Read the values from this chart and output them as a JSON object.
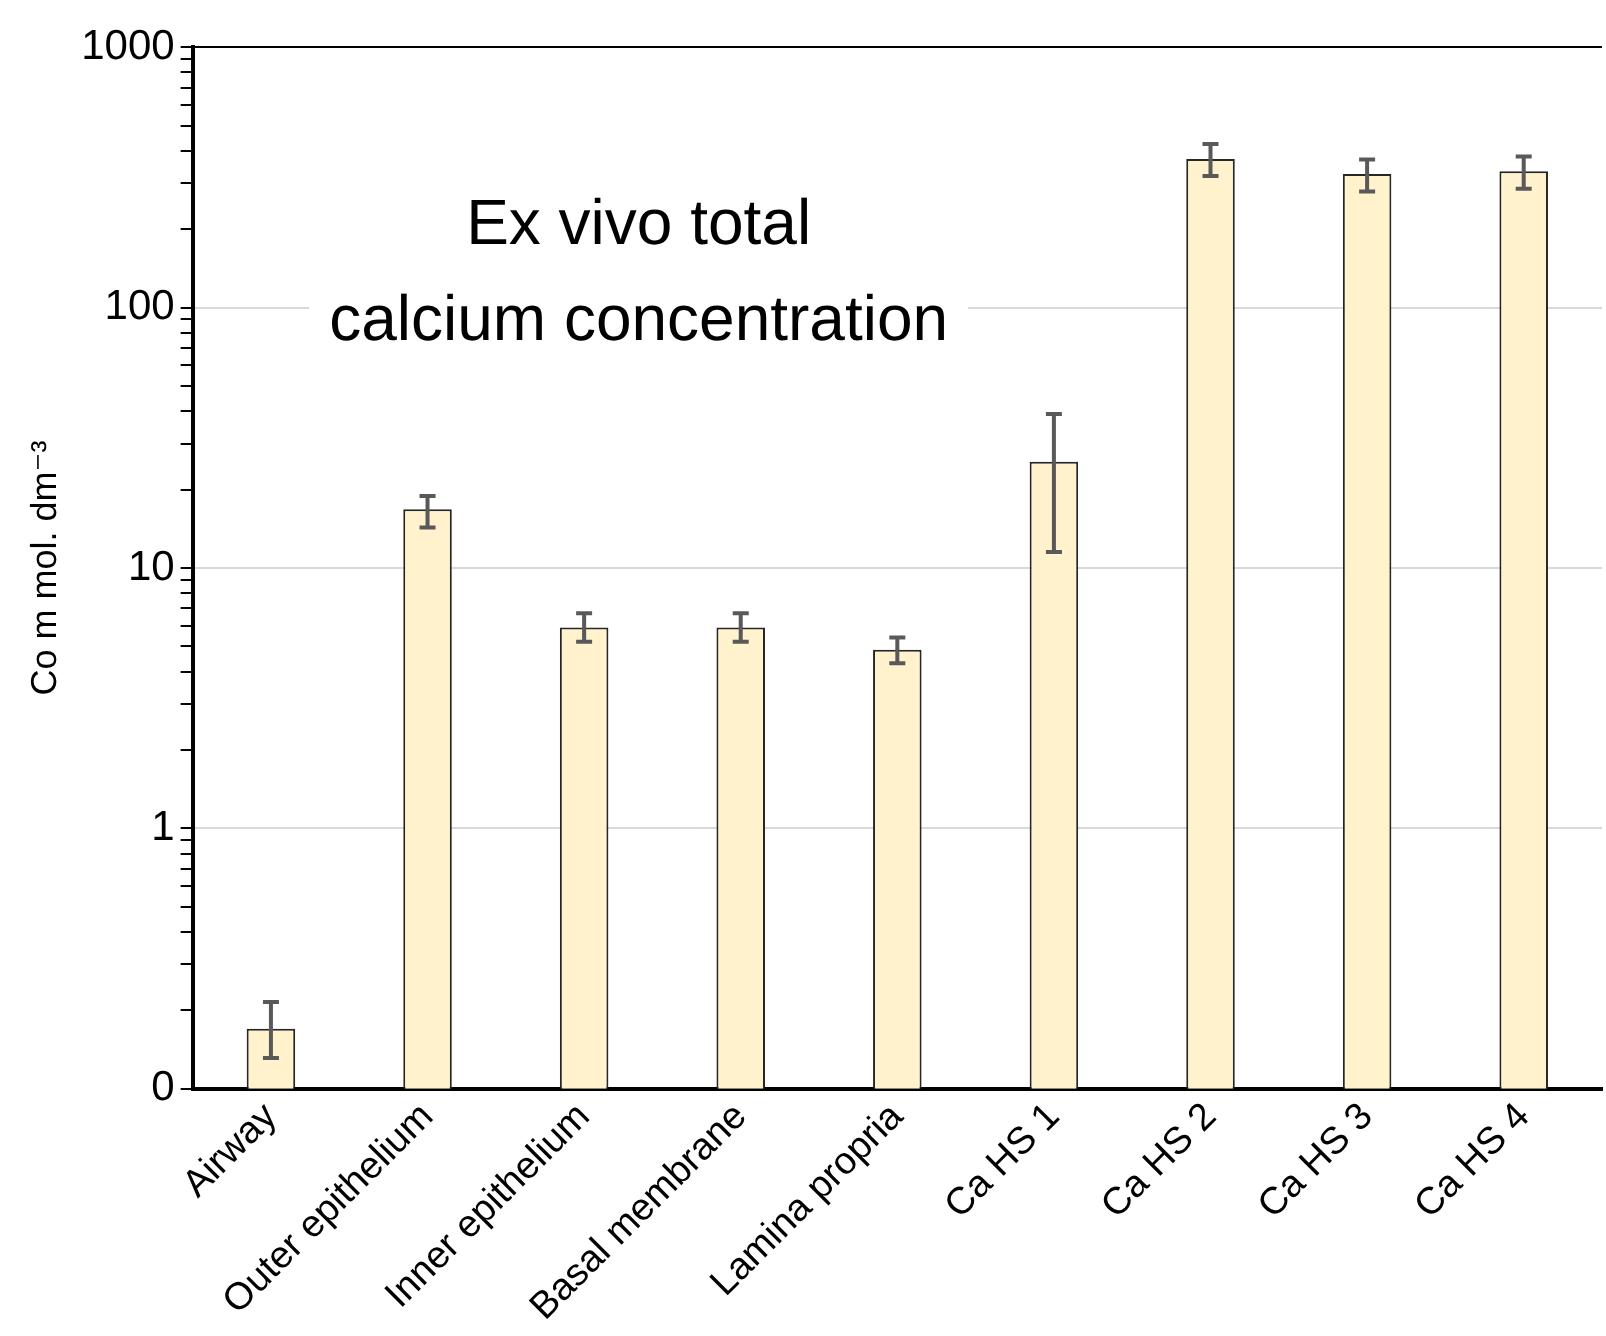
{
  "chart_data": {
    "type": "bar",
    "title": "Ex vivo total calcium concentration",
    "ylabel": "Co m mol. dm⁻³",
    "categories": [
      "Airway",
      "Outer epithelium",
      "Inner epithelium",
      "Basal membrane",
      "Lamina propria",
      "Ca HS 1",
      "Ca HS 2",
      "Ca HS 3",
      "Ca HS 4"
    ],
    "values": [
      0.17,
      16.8,
      5.9,
      5.9,
      4.85,
      25.6,
      372,
      326,
      334
    ],
    "errors": [
      [
        0.131,
        0.215
      ],
      [
        14.3,
        18.9
      ],
      [
        5.2,
        6.7
      ],
      [
        5.2,
        6.7
      ],
      [
        4.3,
        5.4
      ],
      [
        11.5,
        39
      ],
      [
        320,
        425
      ],
      [
        279,
        370
      ],
      [
        286,
        380
      ]
    ],
    "color": "#fff2cc",
    "log": true,
    "grid": "y",
    "ylim": [
      0.1,
      1000
    ],
    "yticks": [
      {
        "value": 0.1,
        "label": "0"
      },
      {
        "value": 0.2,
        "label": null
      },
      {
        "value": 0.3,
        "label": null
      },
      {
        "value": 0.4,
        "label": null
      },
      {
        "value": 0.5,
        "label": null
      },
      {
        "value": 0.6,
        "label": null
      },
      {
        "value": 0.7,
        "label": null
      },
      {
        "value": 0.8,
        "label": null
      },
      {
        "value": 0.9,
        "label": null
      },
      1,
      {
        "value": 2,
        "label": null
      },
      {
        "value": 3,
        "label": null
      },
      {
        "value": 4,
        "label": null
      },
      {
        "value": 5,
        "label": null
      },
      {
        "value": 6,
        "label": null
      },
      {
        "value": 7,
        "label": null
      },
      {
        "value": 8,
        "label": null
      },
      {
        "value": 9,
        "label": null
      },
      10,
      {
        "value": 20,
        "label": null
      },
      {
        "value": 30,
        "label": null
      },
      {
        "value": 40,
        "label": null
      },
      {
        "value": 50,
        "label": null
      },
      {
        "value": 60,
        "label": null
      },
      {
        "value": 70,
        "label": null
      },
      {
        "value": 80,
        "label": null
      },
      {
        "value": 90,
        "label": null
      },
      100,
      {
        "value": 200,
        "label": null
      },
      {
        "value": 300,
        "label": null
      },
      {
        "value": 400,
        "label": null
      },
      {
        "value": 500,
        "label": null
      },
      {
        "value": 600,
        "label": null
      },
      {
        "value": 700,
        "label": null
      },
      {
        "value": 800,
        "label": null
      },
      {
        "value": 900,
        "label": null
      },
      1000
    ]
  }
}
